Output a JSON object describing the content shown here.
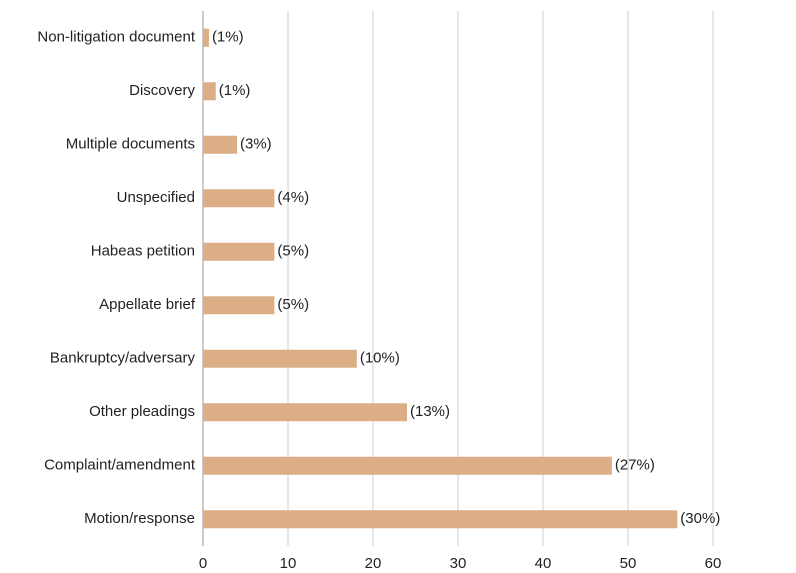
{
  "chart_data": {
    "type": "bar",
    "orientation": "horizontal",
    "categories": [
      "Non-litigation document",
      "Discovery",
      "Multiple documents",
      "Unspecified",
      "Habeas petition",
      "Appellate brief",
      "Bankruptcy/adversary",
      "Other pleadings",
      "Complaint/amendment",
      "Motion/response"
    ],
    "values": [
      0.7,
      1.5,
      4,
      8.4,
      8.4,
      8.4,
      18.1,
      24,
      48.1,
      55.8
    ],
    "annotations": [
      "(1%)",
      "(1%)",
      "(3%)",
      "(4%)",
      "(5%)",
      "(5%)",
      "(10%)",
      "(13%)",
      "(27%)",
      "(30%)"
    ],
    "color": "#dcae85",
    "xlim": [
      0,
      70
    ],
    "xticks": [
      0,
      10,
      20,
      30,
      40,
      50,
      60
    ],
    "grid": true
  }
}
